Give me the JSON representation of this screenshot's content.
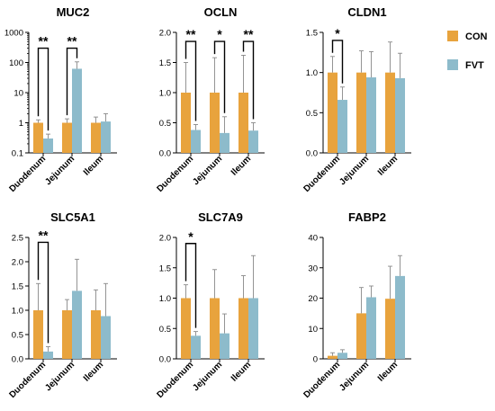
{
  "legend": [
    {
      "name": "CON",
      "color": "#E8A33D"
    },
    {
      "name": "FVT",
      "color": "#8DBBCB"
    }
  ],
  "chart_data": [
    {
      "type": "bar",
      "title": "MUC2",
      "scale": "log",
      "categories": [
        "Duodenum",
        "Jejunum",
        "Ileum"
      ],
      "ylim": [
        0.1,
        1000
      ],
      "ticks": [
        0.1,
        1,
        10,
        100,
        1000
      ],
      "tick_labels": [
        "0.1",
        "1",
        "10",
        "100",
        "1000"
      ],
      "series": [
        {
          "name": "CON",
          "values": [
            1.0,
            1.0,
            1.0
          ],
          "errors": [
            1.25,
            1.35,
            1.55
          ]
        },
        {
          "name": "FVT",
          "values": [
            0.3,
            62,
            1.1
          ],
          "errors": [
            0.42,
            105,
            2.0
          ]
        }
      ],
      "significance": [
        {
          "category": 0,
          "label": "**",
          "top": 300
        },
        {
          "category": 1,
          "label": "**",
          "top": 300
        }
      ]
    },
    {
      "type": "bar",
      "title": "OCLN",
      "scale": "linear",
      "categories": [
        "Duodenum",
        "Jejunum",
        "Ileum"
      ],
      "ylim": [
        0,
        2.0
      ],
      "ticks": [
        0,
        0.5,
        1.0,
        1.5,
        2.0
      ],
      "tick_labels": [
        "0.0",
        "0.5",
        "1.0",
        "1.5",
        "2.0"
      ],
      "series": [
        {
          "name": "CON",
          "values": [
            1.0,
            1.0,
            1.0
          ],
          "errors": [
            1.5,
            1.58,
            1.62
          ]
        },
        {
          "name": "FVT",
          "values": [
            0.38,
            0.33,
            0.37
          ],
          "errors": [
            0.47,
            0.6,
            0.5
          ]
        }
      ],
      "significance": [
        {
          "category": 0,
          "label": "**",
          "top": 1.85
        },
        {
          "category": 1,
          "label": "*",
          "top": 1.85
        },
        {
          "category": 2,
          "label": "**",
          "top": 1.85
        }
      ]
    },
    {
      "type": "bar",
      "title": "CLDN1",
      "scale": "linear",
      "categories": [
        "Duodenum",
        "Jejunum",
        "Ileum"
      ],
      "ylim": [
        0,
        1.5
      ],
      "ticks": [
        0,
        0.5,
        1.0,
        1.5
      ],
      "tick_labels": [
        "0.0",
        "0.5",
        "1.0",
        "1.5"
      ],
      "series": [
        {
          "name": "CON",
          "values": [
            1.0,
            1.0,
            1.0
          ],
          "errors": [
            1.2,
            1.27,
            1.38
          ]
        },
        {
          "name": "FVT",
          "values": [
            0.66,
            0.94,
            0.93
          ],
          "errors": [
            0.82,
            1.26,
            1.24
          ]
        }
      ],
      "significance": [
        {
          "category": 0,
          "label": "*",
          "top": 1.4
        }
      ]
    },
    {
      "type": "bar",
      "title": "SLC5A1",
      "scale": "linear",
      "categories": [
        "Duodenum",
        "Jejunum",
        "Ileum"
      ],
      "ylim": [
        0,
        2.5
      ],
      "ticks": [
        0,
        0.5,
        1.0,
        1.5,
        2.0,
        2.5
      ],
      "tick_labels": [
        "0.0",
        "0.5",
        "1.0",
        "1.5",
        "2.0",
        "2.5"
      ],
      "series": [
        {
          "name": "CON",
          "values": [
            1.0,
            1.0,
            1.0
          ],
          "errors": [
            1.55,
            1.22,
            1.42
          ]
        },
        {
          "name": "FVT",
          "values": [
            0.15,
            1.4,
            0.88
          ],
          "errors": [
            0.25,
            2.05,
            1.55
          ]
        }
      ],
      "significance": [
        {
          "category": 0,
          "label": "**",
          "top": 2.4
        }
      ]
    },
    {
      "type": "bar",
      "title": "SLC7A9",
      "scale": "linear",
      "categories": [
        "Duodenum",
        "Jejunum",
        "Ileum"
      ],
      "ylim": [
        0,
        2.0
      ],
      "ticks": [
        0,
        0.5,
        1.0,
        1.5,
        2.0
      ],
      "tick_labels": [
        "0.0",
        "0.5",
        "1.0",
        "1.5",
        "2.0"
      ],
      "series": [
        {
          "name": "CON",
          "values": [
            1.0,
            1.0,
            1.0
          ],
          "errors": [
            1.22,
            1.47,
            1.37
          ]
        },
        {
          "name": "FVT",
          "values": [
            0.38,
            0.42,
            1.0
          ],
          "errors": [
            0.45,
            0.74,
            1.7
          ]
        }
      ],
      "significance": [
        {
          "category": 0,
          "label": "*",
          "top": 1.9
        }
      ]
    },
    {
      "type": "bar",
      "title": "FABP2",
      "scale": "linear",
      "categories": [
        "Duodenum",
        "Jejunum",
        "Ileum"
      ],
      "ylim": [
        0,
        40
      ],
      "ticks": [
        0,
        10,
        20,
        30,
        40
      ],
      "tick_labels": [
        "0",
        "10",
        "20",
        "30",
        "40"
      ],
      "series": [
        {
          "name": "CON",
          "values": [
            1.0,
            15,
            19.8
          ],
          "errors": [
            2.0,
            23.5,
            30.5
          ]
        },
        {
          "name": "FVT",
          "values": [
            2.0,
            20.3,
            27.3
          ],
          "errors": [
            3.0,
            24.0,
            34.0
          ]
        }
      ],
      "significance": []
    }
  ]
}
